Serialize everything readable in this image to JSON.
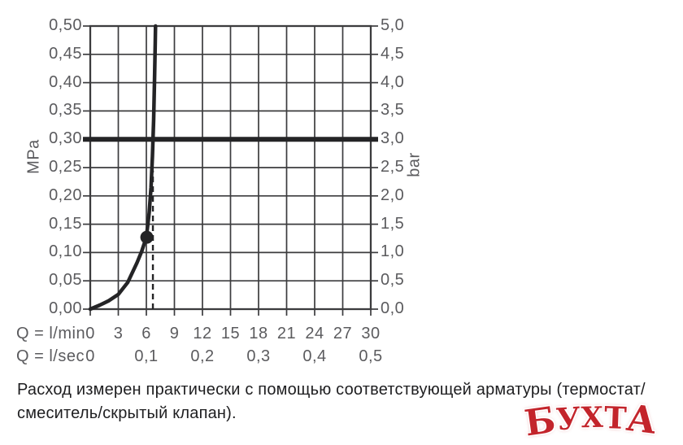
{
  "page": {
    "background": "#ffffff"
  },
  "chart_data": {
    "type": "line",
    "title": "",
    "grid": true,
    "y_axis_left": {
      "label": "MPa",
      "tick_labels": [
        "0,50",
        "0,45",
        "0,40",
        "0,35",
        "0,30",
        "0,25",
        "0,20",
        "0,15",
        "0,10",
        "0,05",
        "0,00"
      ],
      "tick_values_mpa": [
        0.5,
        0.45,
        0.4,
        0.35,
        0.3,
        0.25,
        0.2,
        0.15,
        0.1,
        0.05,
        0
      ],
      "range": [
        0,
        0.5
      ]
    },
    "y_axis_right": {
      "label": "bar",
      "tick_labels": [
        "5,0",
        "4,5",
        "4,0",
        "3,5",
        "3,0",
        "2,5",
        "2,0",
        "1,5",
        "1,0",
        "0,5",
        "0,0"
      ],
      "tick_values_bar": [
        5,
        4.5,
        4,
        3.5,
        3,
        2.5,
        2,
        1.5,
        1,
        0.5,
        0
      ],
      "range": [
        0,
        5
      ]
    },
    "x_axis_lmin": {
      "label": "Q = l/min",
      "tick_labels": [
        "0",
        "3",
        "6",
        "9",
        "12",
        "15",
        "18",
        "21",
        "24",
        "27",
        "30"
      ],
      "tick_values": [
        0,
        3,
        6,
        9,
        12,
        15,
        18,
        21,
        24,
        27,
        30
      ],
      "range": [
        0,
        30
      ]
    },
    "x_axis_lsec": {
      "label": "Q = l/sec",
      "tick_labels": [
        "0",
        "0,1",
        "0,2",
        "0,3",
        "0,4",
        "0,5"
      ],
      "at_lmin": [
        0,
        6,
        12,
        18,
        24,
        30
      ]
    },
    "series": [
      {
        "name": "flow-curve",
        "units": [
          "l/min",
          "MPa"
        ],
        "points": [
          [
            0,
            0
          ],
          [
            1,
            0.007
          ],
          [
            2,
            0.015
          ],
          [
            3,
            0.026
          ],
          [
            4,
            0.047
          ],
          [
            5,
            0.082
          ],
          [
            5.5,
            0.102
          ],
          [
            6,
            0.127
          ],
          [
            6.3,
            0.17
          ],
          [
            6.5,
            0.215
          ],
          [
            6.65,
            0.27
          ],
          [
            6.78,
            0.335
          ],
          [
            6.88,
            0.41
          ],
          [
            6.95,
            0.47
          ],
          [
            6.98,
            0.5
          ]
        ]
      }
    ],
    "pressure_limit_line_mpa": 0.3,
    "marker_point": {
      "lmin": 6.05,
      "mpa": 0.127
    },
    "dashed_guide": {
      "lmin": 6.7,
      "mpa_from": 0,
      "mpa_to": 0.245
    },
    "colors": {
      "grid": "#3c3c3e",
      "curve": "#242426",
      "labels": "#5b5b5e"
    }
  },
  "footer": {
    "line1": "Расход измерен практически с помощью соответствующей арматуры (термостат/",
    "line2": "смеситель/скрытый клапан)."
  },
  "watermark": {
    "text": "БУХТА",
    "letters": [
      "Б",
      "У",
      "Х",
      "Т",
      "А"
    ],
    "color": "#c3242b"
  }
}
